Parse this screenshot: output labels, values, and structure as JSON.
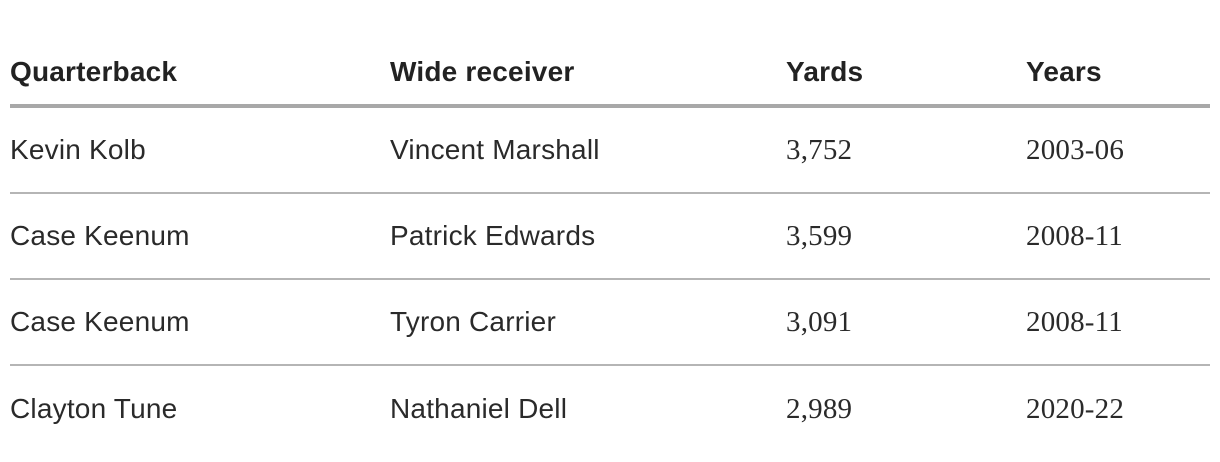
{
  "table": {
    "headers": [
      "Quarterback",
      "Wide receiver",
      "Yards",
      "Years"
    ],
    "rows": [
      {
        "quarterback": "Kevin Kolb",
        "receiver": "Vincent Marshall",
        "yards": "3,752",
        "years": "2003-06"
      },
      {
        "quarterback": "Case Keenum",
        "receiver": "Patrick Edwards",
        "yards": "3,599",
        "years": "2008-11"
      },
      {
        "quarterback": "Case Keenum",
        "receiver": "Tyron Carrier",
        "yards": "3,091",
        "years": "2008-11"
      },
      {
        "quarterback": "Clayton Tune",
        "receiver": "Nathaniel Dell",
        "yards": "2,989",
        "years": "2020-22"
      }
    ]
  }
}
